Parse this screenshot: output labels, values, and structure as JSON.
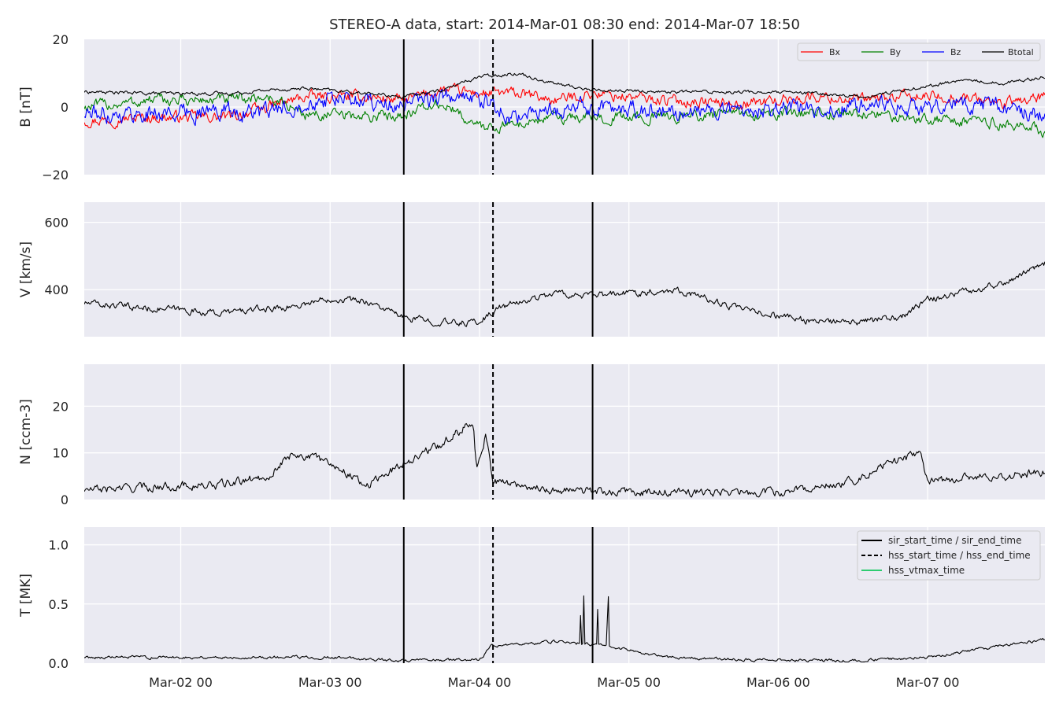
{
  "chart_data": {
    "type": "line",
    "title": "STEREO-A data, start: 2014-Mar-01 08:30  end: 2014-Mar-07 18:50",
    "time_range": [
      "2014-03-01T08:30",
      "2014-03-07T18:50"
    ],
    "x_ticks": [
      {
        "t": "2014-03-02T00:00",
        "label": "Mar-02 00"
      },
      {
        "t": "2014-03-03T00:00",
        "label": "Mar-03 00"
      },
      {
        "t": "2014-03-04T00:00",
        "label": "Mar-04 00"
      },
      {
        "t": "2014-03-05T00:00",
        "label": "Mar-05 00"
      },
      {
        "t": "2014-03-06T00:00",
        "label": "Mar-06 00"
      },
      {
        "t": "2014-03-07T00:00",
        "label": "Mar-07 00"
      }
    ],
    "event_lines": [
      {
        "name": "sir_start_time",
        "t": "2014-03-03T11:50",
        "style": "solid"
      },
      {
        "name": "hss_start_time",
        "t": "2014-03-04T02:10",
        "style": "dashed"
      },
      {
        "name": "sir_end_time",
        "t": "2014-03-04T18:10",
        "style": "solid"
      }
    ],
    "event_legend": [
      {
        "label": "sir_start_time / sir_end_time",
        "style": "solid",
        "color": "#000000"
      },
      {
        "label": "hss_start_time / hss_end_time",
        "style": "dashed",
        "color": "#000000"
      },
      {
        "label": "hss_vtmax_time",
        "style": "solid",
        "color": "#2ecc71"
      }
    ],
    "panels": [
      {
        "id": "B",
        "ylabel": "B [nT]",
        "ylim": [
          -20,
          20
        ],
        "yticks": [
          {
            "v": 20,
            "label": "20"
          },
          {
            "v": 0,
            "label": "0"
          },
          {
            "v": -20,
            "label": "−20"
          }
        ],
        "grid": true,
        "legend_placement": "top-right",
        "series": [
          {
            "name": "Bx",
            "color": "#ff0000",
            "noise": 1.3,
            "x": [
              "2014-03-01T08:30",
              "2014-03-01T20:00",
              "2014-03-02T08:00",
              "2014-03-02T14:00",
              "2014-03-02T20:00",
              "2014-03-03T06:00",
              "2014-03-03T11:50",
              "2014-03-03T18:00",
              "2014-03-04T00:00",
              "2014-03-04T06:00",
              "2014-03-04T12:00",
              "2014-03-04T18:00",
              "2014-03-05T06:00",
              "2014-03-05T18:00",
              "2014-03-06T06:00",
              "2014-03-06T14:00",
              "2014-03-06T20:00",
              "2014-03-07T06:00",
              "2014-03-07T12:00",
              "2014-03-07T18:50"
            ],
            "y": [
              -4,
              -3,
              -3,
              0,
              3,
              3,
              2,
              5,
              4,
              4,
              2,
              4,
              2,
              1,
              3,
              2,
              3,
              3,
              1,
              3
            ]
          },
          {
            "name": "By",
            "color": "#008000",
            "noise": 1.3,
            "x": [
              "2014-03-01T08:30",
              "2014-03-01T20:00",
              "2014-03-02T08:00",
              "2014-03-02T14:00",
              "2014-03-02T20:00",
              "2014-03-03T06:00",
              "2014-03-03T11:50",
              "2014-03-03T18:00",
              "2014-03-04T00:00",
              "2014-03-04T06:00",
              "2014-03-04T12:00",
              "2014-03-04T18:00",
              "2014-03-05T06:00",
              "2014-03-05T18:00",
              "2014-03-06T06:00",
              "2014-03-06T14:00",
              "2014-03-06T20:00",
              "2014-03-07T06:00",
              "2014-03-07T12:00",
              "2014-03-07T18:50"
            ],
            "y": [
              0,
              2,
              2,
              3,
              -2,
              -3,
              -2,
              1,
              -6,
              -5,
              -3,
              -3,
              -3,
              -2,
              -2,
              -2,
              -3,
              -4,
              -5,
              -7
            ]
          },
          {
            "name": "Bz",
            "color": "#0000ff",
            "noise": 2.0,
            "x": [
              "2014-03-01T08:30",
              "2014-03-01T20:00",
              "2014-03-02T08:00",
              "2014-03-02T14:00",
              "2014-03-02T20:00",
              "2014-03-03T06:00",
              "2014-03-03T11:50",
              "2014-03-03T18:00",
              "2014-03-04T00:00",
              "2014-03-04T06:00",
              "2014-03-04T12:00",
              "2014-03-04T18:00",
              "2014-03-05T06:00",
              "2014-03-05T18:00",
              "2014-03-06T06:00",
              "2014-03-06T14:00",
              "2014-03-06T20:00",
              "2014-03-07T06:00",
              "2014-03-07T12:00",
              "2014-03-07T18:50"
            ],
            "y": [
              -2,
              -2,
              -1,
              -2,
              2,
              2,
              0,
              3,
              2,
              -3,
              -1,
              0,
              -1,
              -1,
              0,
              0,
              0,
              1,
              0,
              -3
            ]
          },
          {
            "name": "Btotal",
            "color": "#000000",
            "noise": 0.4,
            "x": [
              "2014-03-01T08:30",
              "2014-03-01T20:00",
              "2014-03-02T08:00",
              "2014-03-02T14:00",
              "2014-03-02T20:00",
              "2014-03-03T06:00",
              "2014-03-03T11:50",
              "2014-03-03T18:00",
              "2014-03-04T00:00",
              "2014-03-04T06:00",
              "2014-03-04T12:00",
              "2014-03-04T18:00",
              "2014-03-05T06:00",
              "2014-03-05T18:00",
              "2014-03-06T06:00",
              "2014-03-06T14:00",
              "2014-03-06T20:00",
              "2014-03-07T06:00",
              "2014-03-07T12:00",
              "2014-03-07T18:50"
            ],
            "y": [
              4.5,
              4,
              4,
              5,
              5.5,
              4,
              3,
              5,
              9,
              10,
              7,
              5,
              4.5,
              4.5,
              4,
              3,
              5,
              8,
              7,
              9
            ]
          }
        ]
      },
      {
        "id": "V",
        "ylabel": "V [km/s]",
        "ylim": [
          260,
          660
        ],
        "yticks": [
          {
            "v": 600,
            "label": "600"
          },
          {
            "v": 400,
            "label": "400"
          }
        ],
        "grid": true,
        "series": [
          {
            "name": "V",
            "color": "#000000",
            "noise": 8,
            "x": [
              "2014-03-01T08:30",
              "2014-03-01T18:00",
              "2014-03-02T00:00",
              "2014-03-02T06:00",
              "2014-03-02T12:00",
              "2014-03-02T18:00",
              "2014-03-03T00:00",
              "2014-03-03T06:00",
              "2014-03-03T12:00",
              "2014-03-03T20:00",
              "2014-03-04T00:00",
              "2014-03-04T03:00",
              "2014-03-04T12:00",
              "2014-03-04T18:00",
              "2014-03-05T00:00",
              "2014-03-05T08:00",
              "2014-03-05T18:00",
              "2014-03-06T06:00",
              "2014-03-06T12:00",
              "2014-03-06T20:00",
              "2014-03-07T00:00",
              "2014-03-07T12:00",
              "2014-03-07T18:50"
            ],
            "y": [
              360,
              345,
              340,
              330,
              340,
              350,
              375,
              365,
              315,
              300,
              305,
              345,
              390,
              380,
              390,
              400,
              340,
              305,
              300,
              320,
              370,
              420,
              480
            ]
          }
        ]
      },
      {
        "id": "N",
        "ylabel": "N [ccm-3]",
        "ylim": [
          0,
          29
        ],
        "yticks": [
          {
            "v": 20,
            "label": "20"
          },
          {
            "v": 10,
            "label": "10"
          },
          {
            "v": 0,
            "label": "0"
          }
        ],
        "grid": true,
        "series": [
          {
            "name": "N",
            "color": "#000000",
            "noise": 0.7,
            "x": [
              "2014-03-01T08:30",
              "2014-03-02T00:00",
              "2014-03-02T06:00",
              "2014-03-02T14:00",
              "2014-03-02T18:00",
              "2014-03-03T00:00",
              "2014-03-03T06:00",
              "2014-03-03T12:00",
              "2014-03-03T18:00",
              "2014-03-03T23:00",
              "2014-03-03T23:30",
              "2014-03-04T01:00",
              "2014-03-04T02:10",
              "2014-03-04T12:00",
              "2014-03-05T00:00",
              "2014-03-05T12:00",
              "2014-03-06T00:00",
              "2014-03-06T12:00",
              "2014-03-06T18:00",
              "2014-03-06T23:00",
              "2014-03-07T00:00",
              "2014-03-07T12:00",
              "2014-03-07T18:50"
            ],
            "y": [
              2,
              3,
              3,
              5,
              10,
              8,
              3,
              8,
              12,
              17,
              7,
              14,
              4,
              2,
              1.5,
              1.5,
              1.5,
              4,
              8,
              10,
              4,
              5,
              6
            ]
          }
        ]
      },
      {
        "id": "T",
        "ylabel": "T [MK]",
        "ylim": [
          0,
          1.15
        ],
        "yticks": [
          {
            "v": 1.0,
            "label": "1.0"
          },
          {
            "v": 0.5,
            "label": "0.5"
          },
          {
            "v": 0.0,
            "label": "0.0"
          }
        ],
        "grid": true,
        "legend_placement": "top-right",
        "series": [
          {
            "name": "T",
            "color": "#000000",
            "noise": 0.01,
            "x": [
              "2014-03-01T08:30",
              "2014-03-02T00:00",
              "2014-03-02T12:00",
              "2014-03-03T00:00",
              "2014-03-03T12:00",
              "2014-03-04T00:00",
              "2014-03-04T02:00",
              "2014-03-04T12:00",
              "2014-03-04T20:00",
              "2014-03-05T06:00",
              "2014-03-05T18:00",
              "2014-03-06T12:00",
              "2014-03-07T00:00",
              "2014-03-07T12:00",
              "2014-03-07T18:50"
            ],
            "y": [
              0.05,
              0.05,
              0.05,
              0.05,
              0.02,
              0.03,
              0.15,
              0.18,
              0.15,
              0.05,
              0.03,
              0.02,
              0.05,
              0.15,
              0.2
            ]
          }
        ]
      }
    ]
  }
}
